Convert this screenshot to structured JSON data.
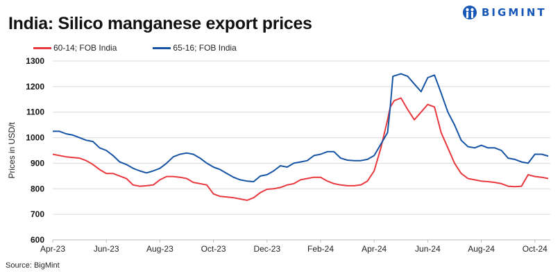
{
  "brand": {
    "name": "BIGMINT",
    "color": "#1757b8"
  },
  "source": "Source: BigMint",
  "chart_data": {
    "type": "line",
    "title": "India: Silico manganese export prices",
    "xlabel": "",
    "ylabel": "Prices in USD/t",
    "ylim": [
      600,
      1300
    ],
    "yticks": [
      600,
      700,
      800,
      900,
      1000,
      1100,
      1200,
      1300
    ],
    "xlim": [
      0,
      18.6
    ],
    "xticks": [
      {
        "m": 0,
        "label": "Apr-23"
      },
      {
        "m": 2,
        "label": "Jun-23"
      },
      {
        "m": 4,
        "label": "Aug-23"
      },
      {
        "m": 6,
        "label": "Oct-23"
      },
      {
        "m": 8,
        "label": "Dec-23"
      },
      {
        "m": 10,
        "label": "Feb-24"
      },
      {
        "m": 12,
        "label": "Apr-24"
      },
      {
        "m": 14,
        "label": "Jun-24"
      },
      {
        "m": 16,
        "label": "Aug-24"
      },
      {
        "m": 18,
        "label": "Oct-24"
      }
    ],
    "x_unit": "months since Apr-23",
    "grid": "horizontal",
    "legend_position": "top-left",
    "series": [
      {
        "name": "60-14; FOB India",
        "color": "#e8383d",
        "x": [
          0,
          0.5,
          1,
          1.25,
          1.5,
          1.75,
          2,
          2.25,
          2.5,
          2.75,
          3,
          3.25,
          3.5,
          3.75,
          4,
          4.25,
          4.5,
          4.75,
          5,
          5.25,
          5.5,
          5.75,
          6,
          6.25,
          6.5,
          6.75,
          7,
          7.25,
          7.5,
          7.75,
          8,
          8.25,
          8.5,
          8.75,
          9,
          9.25,
          9.5,
          9.75,
          10,
          10.25,
          10.5,
          10.75,
          11,
          11.25,
          11.5,
          11.75,
          12,
          12.25,
          12.5,
          12.6,
          12.75,
          13,
          13.25,
          13.5,
          13.75,
          14,
          14.25,
          14.5,
          14.75,
          15,
          15.25,
          15.5,
          15.75,
          16,
          16.25,
          16.5,
          16.75,
          17,
          17.25,
          17.5,
          17.75,
          18,
          18.25,
          18.5
        ],
        "values": [
          935,
          925,
          920,
          910,
          895,
          875,
          860,
          860,
          850,
          840,
          815,
          810,
          812,
          815,
          835,
          848,
          848,
          845,
          840,
          825,
          820,
          815,
          780,
          770,
          768,
          765,
          760,
          755,
          765,
          785,
          798,
          800,
          805,
          815,
          820,
          835,
          840,
          845,
          845,
          830,
          820,
          815,
          812,
          812,
          815,
          830,
          870,
          960,
          1070,
          1120,
          1145,
          1155,
          1110,
          1070,
          1100,
          1130,
          1120,
          1020,
          960,
          900,
          860,
          840,
          835,
          830,
          828,
          825,
          820,
          810,
          808,
          810,
          855,
          848,
          845,
          840
        ]
      },
      {
        "name": "65-16; FOB India",
        "color": "#1452a3",
        "x": [
          0,
          0.25,
          0.5,
          0.75,
          1,
          1.25,
          1.5,
          1.75,
          2,
          2.25,
          2.5,
          2.75,
          3,
          3.25,
          3.5,
          3.75,
          4,
          4.25,
          4.5,
          4.75,
          5,
          5.25,
          5.5,
          5.75,
          6,
          6.25,
          6.5,
          6.75,
          7,
          7.25,
          7.5,
          7.75,
          8,
          8.25,
          8.5,
          8.75,
          9,
          9.25,
          9.5,
          9.75,
          10,
          10.25,
          10.5,
          10.75,
          11,
          11.25,
          11.5,
          11.75,
          12,
          12.25,
          12.5,
          12.6,
          12.7,
          13,
          13.25,
          13.5,
          13.75,
          14,
          14.25,
          14.5,
          14.75,
          15,
          15.25,
          15.5,
          15.75,
          16,
          16.25,
          16.5,
          16.75,
          17,
          17.25,
          17.5,
          17.75,
          18,
          18.25,
          18.5
        ],
        "values": [
          1025,
          1025,
          1015,
          1010,
          1000,
          990,
          985,
          960,
          950,
          930,
          905,
          895,
          880,
          870,
          862,
          870,
          880,
          900,
          925,
          935,
          940,
          935,
          920,
          900,
          885,
          875,
          860,
          845,
          835,
          830,
          828,
          850,
          855,
          870,
          890,
          885,
          900,
          905,
          910,
          930,
          935,
          945,
          945,
          920,
          912,
          910,
          910,
          915,
          930,
          975,
          1020,
          1120,
          1240,
          1250,
          1240,
          1210,
          1180,
          1235,
          1245,
          1175,
          1100,
          1050,
          990,
          965,
          960,
          970,
          960,
          960,
          950,
          920,
          915,
          905,
          900,
          935,
          935,
          928
        ]
      }
    ]
  }
}
